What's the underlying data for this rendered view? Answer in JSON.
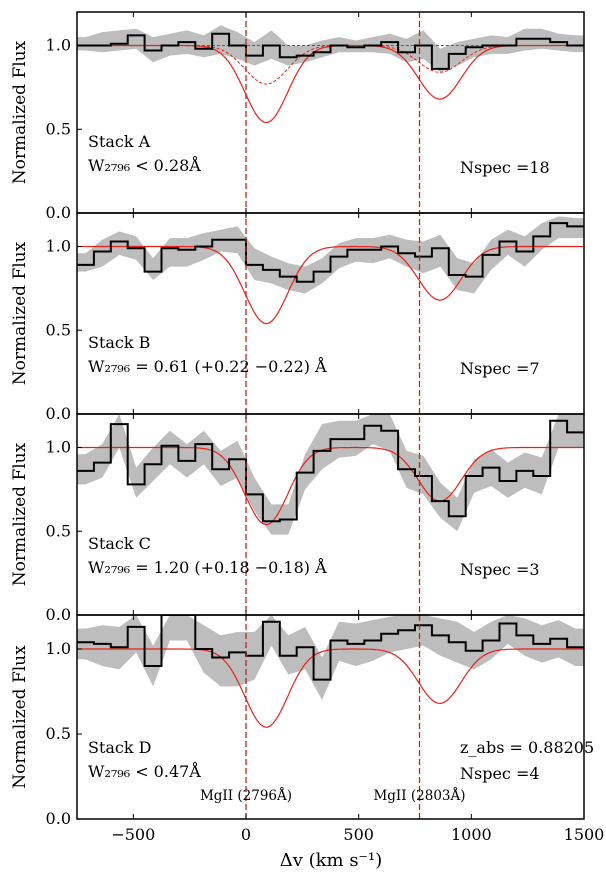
{
  "chart_data": {
    "type": "line",
    "xlabel": "Δv (km s⁻¹)",
    "xlim": [
      -750,
      1500
    ],
    "xticks": [
      -500,
      0,
      500,
      1000,
      1500
    ],
    "xtick_labels": [
      "−500",
      "0",
      "500",
      "1000",
      "1500"
    ],
    "ylabel": "Normalized Flux",
    "ylim": [
      0.0,
      1.2
    ],
    "yticks": [
      0.0,
      0.5,
      1.0
    ],
    "ytick_labels": [
      "0.0",
      "0.5",
      "1.0"
    ],
    "line_markers": [
      {
        "label": "MgII (2796Å)",
        "x": 0
      },
      {
        "label": "MgII (2803Å)",
        "x": 770
      }
    ],
    "colors": {
      "stack": "#000000",
      "band": "#bdbdbd",
      "model": "#e8231a",
      "marker": "#c0271b"
    },
    "bin_edges": [
      -750,
      -675,
      -600,
      -525,
      -450,
      -375,
      -300,
      -225,
      -150,
      -75,
      0,
      75,
      150,
      225,
      300,
      375,
      450,
      525,
      600,
      675,
      750,
      825,
      900,
      975,
      1050,
      1125,
      1200,
      1275,
      1350,
      1425,
      1500
    ],
    "model": {
      "amplitude": 0.46,
      "center_2796": 90,
      "center_2803": 860,
      "amplitude_2803": 0.32,
      "sigma": 95
    },
    "panels": [
      {
        "label": "Stack A",
        "width_text": "W₂₇₉₆ < 0.28Å",
        "nspec": "Nspec =18",
        "zabs": "",
        "flux": [
          1.0,
          1.0,
          1.01,
          1.06,
          0.97,
          1.0,
          1.02,
          0.98,
          1.07,
          1.0,
          0.94,
          1.0,
          0.93,
          0.94,
          0.96,
          1.0,
          0.99,
          1.0,
          1.02,
          0.96,
          1.0,
          0.86,
          0.95,
          0.99,
          1.0,
          1.0,
          1.04,
          1.04,
          1.02,
          1.0
        ],
        "err_lo": [
          0.97,
          0.96,
          0.97,
          0.98,
          0.9,
          0.94,
          0.95,
          0.93,
          0.95,
          0.92,
          0.88,
          0.92,
          0.88,
          0.9,
          0.93,
          0.96,
          0.96,
          0.96,
          0.95,
          0.9,
          0.92,
          0.84,
          0.88,
          0.93,
          0.95,
          0.95,
          0.97,
          0.98,
          0.97,
          0.96
        ],
        "err_hi": [
          1.05,
          1.08,
          1.09,
          1.1,
          1.05,
          1.07,
          1.09,
          1.06,
          1.12,
          1.08,
          1.02,
          1.09,
          1.0,
          1.0,
          1.03,
          1.05,
          1.03,
          1.05,
          1.07,
          1.04,
          1.09,
          0.98,
          1.02,
          1.04,
          1.06,
          1.05,
          1.1,
          1.1,
          1.07,
          1.06
        ],
        "show_components": true
      },
      {
        "label": "Stack B",
        "width_text": "W₂₇₉₆ = 0.61 (+0.22 −0.22) Å",
        "nspec": "Nspec =7",
        "zabs": "",
        "flux": [
          0.89,
          0.97,
          1.03,
          0.99,
          0.85,
          0.99,
          0.98,
          1.0,
          1.04,
          1.04,
          0.89,
          0.86,
          0.82,
          0.79,
          0.85,
          0.94,
          0.98,
          0.98,
          1.0,
          0.96,
          0.94,
          0.99,
          0.83,
          0.82,
          0.95,
          1.03,
          0.97,
          1.06,
          1.14,
          1.12
        ],
        "err_lo": [
          0.85,
          0.88,
          0.95,
          0.92,
          0.8,
          0.88,
          0.88,
          0.92,
          0.97,
          0.96,
          0.8,
          0.78,
          0.74,
          0.72,
          0.78,
          0.87,
          0.91,
          0.9,
          0.93,
          0.88,
          0.84,
          0.88,
          0.74,
          0.72,
          0.86,
          0.95,
          0.88,
          0.98,
          1.05,
          1.05
        ],
        "err_hi": [
          0.96,
          1.04,
          1.09,
          1.06,
          0.93,
          1.05,
          1.05,
          1.08,
          1.1,
          1.12,
          0.99,
          0.94,
          0.9,
          0.88,
          0.93,
          1.02,
          1.05,
          1.05,
          1.07,
          1.04,
          1.03,
          1.07,
          0.93,
          0.9,
          1.04,
          1.1,
          1.06,
          1.14,
          1.18,
          1.17
        ],
        "show_components": false
      },
      {
        "label": "Stack C",
        "width_text": "W₂₇₉₆ = 1.20 (+0.18 −0.18) Å",
        "nspec": "Nspec =3",
        "zabs": "",
        "flux": [
          0.86,
          0.91,
          1.14,
          0.78,
          0.9,
          1.01,
          0.92,
          1.02,
          0.87,
          0.93,
          0.72,
          0.56,
          0.57,
          0.85,
          0.98,
          1.05,
          1.05,
          1.13,
          1.1,
          0.87,
          0.83,
          0.68,
          0.59,
          0.83,
          0.88,
          0.8,
          0.86,
          0.83,
          1.16,
          1.09
        ],
        "err_lo": [
          0.78,
          0.82,
          1.0,
          0.7,
          0.8,
          0.9,
          0.82,
          0.9,
          0.77,
          0.82,
          0.62,
          0.48,
          0.48,
          0.75,
          0.87,
          0.94,
          0.95,
          1.02,
          0.98,
          0.76,
          0.72,
          0.58,
          0.5,
          0.73,
          0.77,
          0.7,
          0.76,
          0.72,
          1.0,
          1.0
        ],
        "err_hi": [
          0.96,
          1.02,
          1.2,
          0.88,
          1.0,
          1.1,
          1.02,
          1.1,
          0.98,
          1.04,
          0.82,
          0.66,
          0.66,
          0.96,
          1.14,
          1.16,
          1.16,
          1.2,
          1.2,
          0.98,
          0.95,
          0.79,
          0.7,
          0.93,
          0.99,
          0.91,
          0.97,
          0.94,
          1.2,
          1.2
        ],
        "show_components": false
      },
      {
        "label": "Stack D",
        "width_text": "W₂₇₉₆ < 0.47Å",
        "nspec": "Nspec =4",
        "zabs": "z_abs = 0.88205",
        "flux": [
          1.04,
          1.03,
          1.01,
          1.13,
          0.9,
          1.2,
          1.2,
          1.0,
          0.95,
          0.98,
          0.96,
          1.16,
          0.96,
          1.01,
          0.82,
          1.05,
          1.03,
          1.05,
          1.09,
          1.11,
          1.14,
          1.08,
          1.04,
          0.99,
          1.05,
          1.15,
          1.08,
          1.03,
          1.06,
          1.01
        ],
        "err_lo": [
          0.94,
          0.9,
          0.88,
          0.98,
          0.78,
          1.05,
          1.05,
          0.86,
          0.78,
          0.78,
          0.82,
          1.02,
          0.85,
          0.88,
          0.7,
          0.93,
          0.9,
          0.93,
          0.98,
          1.0,
          1.02,
          0.96,
          0.92,
          0.88,
          0.94,
          1.03,
          0.96,
          0.92,
          0.95,
          0.9
        ],
        "err_hi": [
          1.12,
          1.14,
          1.13,
          1.2,
          1.02,
          1.2,
          1.2,
          1.14,
          1.08,
          1.1,
          1.1,
          1.2,
          1.08,
          1.13,
          0.95,
          1.16,
          1.15,
          1.17,
          1.19,
          1.2,
          1.2,
          1.18,
          1.16,
          1.1,
          1.16,
          1.2,
          1.18,
          1.14,
          1.17,
          1.12
        ],
        "show_components": false
      }
    ]
  }
}
